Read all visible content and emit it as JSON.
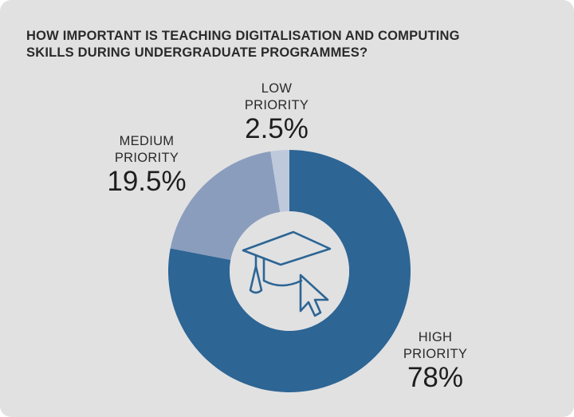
{
  "chart_data": {
    "type": "pie",
    "style": "donut",
    "title_lines": [
      "HOW IMPORTANT IS TEACHING DIGITALISATION AND COMPUTING",
      "SKILLS DURING UNDERGRADUATE PROGRAMMES?"
    ],
    "slices": [
      {
        "name_lines": [
          "HIGH",
          "PRIORITY"
        ],
        "value": 78,
        "label": "78%",
        "color": "#2d6594"
      },
      {
        "name_lines": [
          "MEDIUM",
          "PRIORITY"
        ],
        "value": 19.5,
        "label": "19.5%",
        "color": "#8a9dbd"
      },
      {
        "name_lines": [
          "LOW",
          "PRIORITY"
        ],
        "value": 2.5,
        "label": "2.5%",
        "color": "#bfc9dc"
      }
    ],
    "center_icon": "graduation-cap-cursor-icon",
    "colors": {
      "background": "#e1e1e2",
      "center": "#e1e1e2",
      "icon": "#2d6594"
    }
  }
}
